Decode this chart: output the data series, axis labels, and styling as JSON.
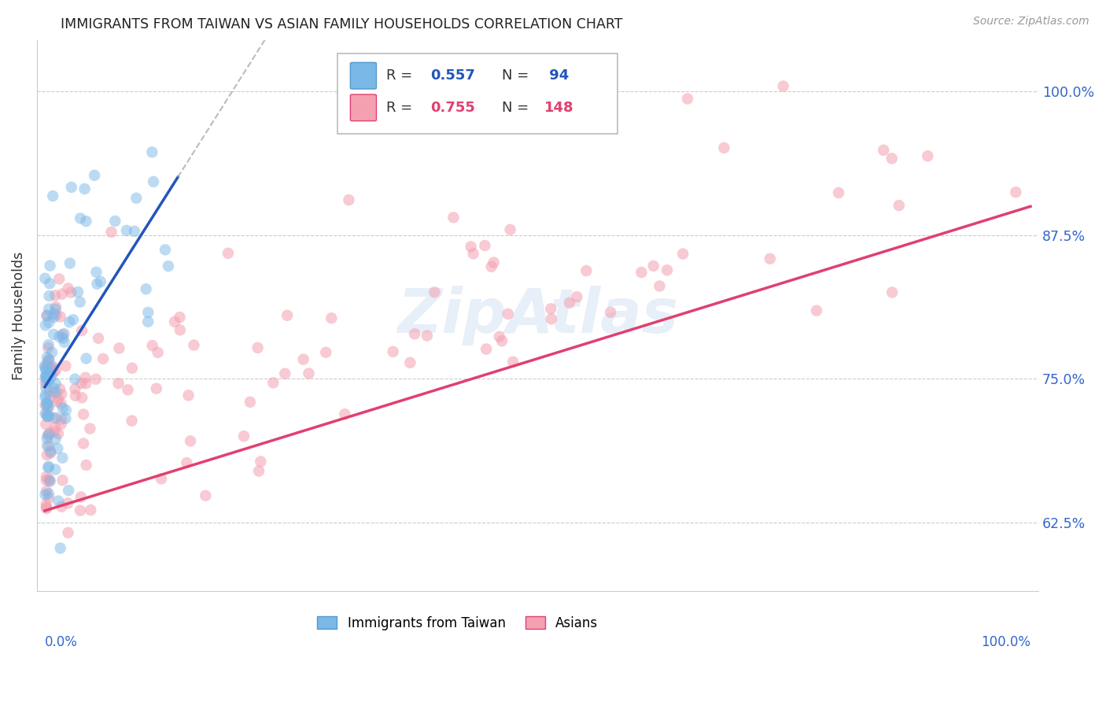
{
  "title": "IMMIGRANTS FROM TAIWAN VS ASIAN FAMILY HOUSEHOLDS CORRELATION CHART",
  "source": "Source: ZipAtlas.com",
  "ylabel": "Family Households",
  "ytick_labels": [
    "62.5%",
    "75.0%",
    "87.5%",
    "100.0%"
  ],
  "ytick_values": [
    0.625,
    0.75,
    0.875,
    1.0
  ],
  "ylim": [
    0.565,
    1.045
  ],
  "xlim": [
    -0.008,
    1.008
  ],
  "color_blue": "#7ab8e8",
  "color_pink": "#f4a0b0",
  "color_blue_line": "#2255bb",
  "color_pink_line": "#e04070",
  "color_axis_label": "#3366cc",
  "watermark_color": "#c5d8ef",
  "taiwan_seed": 42,
  "asian_seed": 77
}
